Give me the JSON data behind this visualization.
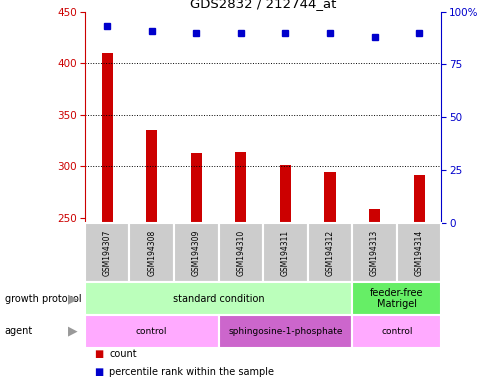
{
  "title": "GDS2832 / 212744_at",
  "samples": [
    "GSM194307",
    "GSM194308",
    "GSM194309",
    "GSM194310",
    "GSM194311",
    "GSM194312",
    "GSM194313",
    "GSM194314"
  ],
  "counts": [
    410,
    335,
    313,
    314,
    301,
    294,
    258,
    291
  ],
  "percentile_ranks": [
    93,
    91,
    90,
    90,
    90,
    90,
    88,
    90
  ],
  "ylim_left": [
    245,
    450
  ],
  "ylim_right": [
    0,
    100
  ],
  "yticks_left": [
    250,
    300,
    350,
    400,
    450
  ],
  "yticks_right": [
    0,
    25,
    50,
    75,
    100
  ],
  "bar_color": "#cc0000",
  "dot_color": "#0000cc",
  "bar_bottom": 245,
  "growth_protocol_groups": [
    {
      "label": "standard condition",
      "start": 0,
      "end": 6,
      "color": "#bbffbb"
    },
    {
      "label": "feeder-free\nMatrigel",
      "start": 6,
      "end": 8,
      "color": "#66ee66"
    }
  ],
  "agent_groups": [
    {
      "label": "control",
      "start": 0,
      "end": 3,
      "color": "#ffaaff"
    },
    {
      "label": "sphingosine-1-phosphate",
      "start": 3,
      "end": 6,
      "color": "#cc66cc"
    },
    {
      "label": "control",
      "start": 6,
      "end": 8,
      "color": "#ffaaff"
    }
  ],
  "legend_count_label": "count",
  "legend_pct_label": "percentile rank within the sample",
  "growth_protocol_label": "growth protocol",
  "agent_label": "agent",
  "background_color": "#ffffff",
  "left_axis_color": "#cc0000",
  "right_axis_color": "#0000cc",
  "sample_bg_color": "#cccccc",
  "sample_border_color": "#ffffff"
}
